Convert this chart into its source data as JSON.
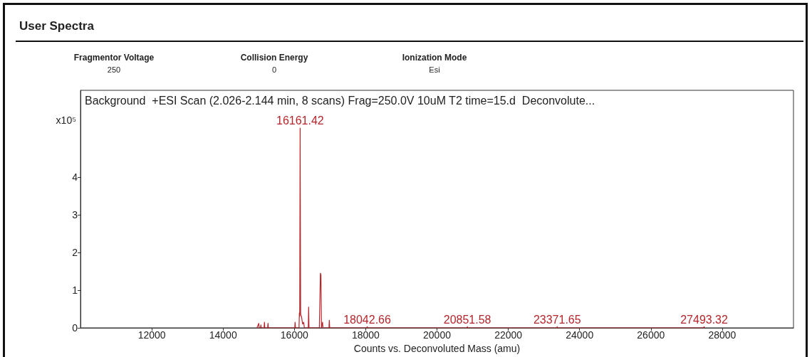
{
  "chart_data": {
    "type": "line",
    "title": "User Spectra",
    "subtitle": "Background  +ESI Scan (2.026-2.144 min, 8 scans) Frag=250.0V 10uM T2 time=15.d  Deconvolute...",
    "xlabel": "Counts vs. Deconvoluted Mass (amu)",
    "ylabel": "x10⁵",
    "annotations": [
      "Fragmentor Voltage",
      "250",
      "Collision Energy",
      "0",
      "Ionization Mode",
      "Esi",
      {
        "text": "16161.42",
        "x": 16161.42,
        "y": 5.3
      },
      {
        "text": "18042.66",
        "x": 18042.66,
        "y": 0.03
      },
      {
        "text": "20851.58",
        "x": 20851.58,
        "y": 0.03
      },
      {
        "text": "23371.65",
        "x": 23371.65,
        "y": 0.03
      },
      {
        "text": "27493.32",
        "x": 27493.32,
        "y": 0.03
      }
    ],
    "series": [
      {
        "color": "#b5262b",
        "x": [
          14950,
          15000,
          15010,
          15050,
          15060,
          15070,
          15150,
          15160,
          15170,
          15250,
          15260,
          15270,
          16010,
          16020,
          16030,
          16130,
          16140,
          16150,
          16161.42,
          16175,
          16200,
          16230,
          16260,
          16280,
          16390,
          16400,
          16410,
          16700,
          16730,
          16745,
          16760,
          16790,
          16800,
          16970,
          16980,
          16990,
          18030,
          18042.66,
          18055,
          20840,
          20851.58,
          20865,
          23360,
          23371.65,
          23385,
          27480,
          27493.32,
          27505
        ],
        "values": [
          0,
          0.12,
          0,
          0,
          0.08,
          0,
          0,
          0.15,
          0,
          0,
          0.12,
          0,
          0,
          0.15,
          0,
          0,
          0.4,
          0.3,
          5.3,
          0.35,
          0.3,
          0.1,
          0.15,
          0,
          0,
          0.55,
          0,
          0,
          1.45,
          1.4,
          0,
          0.15,
          0,
          0,
          0.2,
          0,
          0,
          0.03,
          0,
          0,
          0.03,
          0,
          0,
          0.03,
          0,
          0,
          0.03,
          0
        ]
      }
    ],
    "xlim": [
      10000,
      30000
    ],
    "xticks": [
      12000,
      14000,
      16000,
      18000,
      20000,
      22000,
      24000,
      26000,
      28000
    ],
    "ylim": [
      0,
      6.3
    ],
    "yticks": [
      0,
      1,
      2,
      3,
      4
    ],
    "grid": false,
    "marker": "none",
    "line_style": "solid"
  }
}
